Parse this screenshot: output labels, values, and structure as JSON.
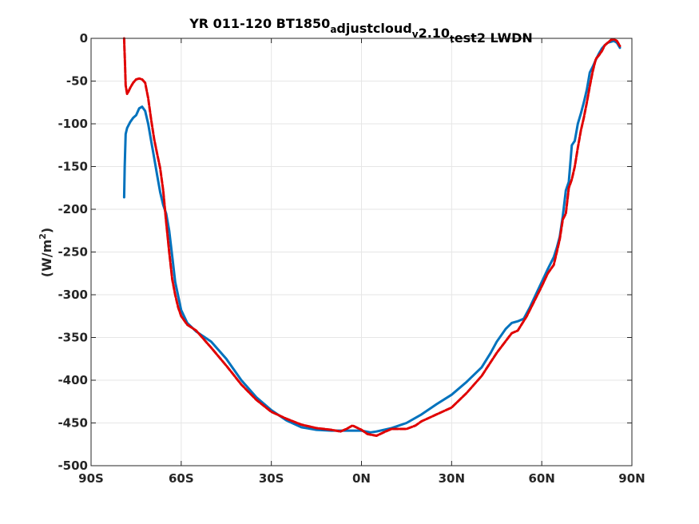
{
  "chart_data": {
    "type": "line",
    "title": {
      "parts": [
        {
          "text": "YR 011-120 BT1850",
          "sub": false
        },
        {
          "text": "a",
          "sub": true
        },
        {
          "text": "djustcloud",
          "sub": false
        },
        {
          "text": "v",
          "sub": true
        },
        {
          "text": "2.10",
          "sub": false
        },
        {
          "text": "t",
          "sub": true
        },
        {
          "text": "est2 LWDN",
          "sub": false
        }
      ]
    },
    "ylabel": {
      "base": "(W/m",
      "sup": "2",
      "close": ")"
    },
    "xlim": [
      -90,
      90
    ],
    "ylim": [
      -500,
      0
    ],
    "xticks": [
      -90,
      -60,
      -30,
      0,
      30,
      60,
      90
    ],
    "xtick_labels": [
      "90S",
      "60S",
      "30S",
      "0N",
      "30N",
      "60N",
      "90N"
    ],
    "yticks": [
      0,
      -50,
      -100,
      -150,
      -200,
      -250,
      -300,
      -350,
      -400,
      -450,
      -500
    ],
    "ytick_labels": [
      "0",
      "-50",
      "-100",
      "-150",
      "-200",
      "-250",
      "-300",
      "-350",
      "-400",
      "-450",
      "-500"
    ],
    "grid": true,
    "series": [
      {
        "color": "#0072BD",
        "style": "solid",
        "x": [
          -79,
          -78.8,
          -78.5,
          -78,
          -77,
          -76,
          -75,
          -74.5,
          -74,
          -73,
          -72,
          -71,
          -70,
          -69,
          -68,
          -67,
          -66,
          -65,
          -64,
          -63,
          -62,
          -60,
          -58,
          -55,
          -50,
          -45,
          -40,
          -35,
          -30,
          -25,
          -20,
          -15,
          -10,
          -5,
          0,
          3,
          5,
          10,
          15,
          20,
          25,
          30,
          35,
          40,
          43,
          45,
          48,
          50,
          52,
          54,
          56,
          58,
          60,
          62,
          64,
          65,
          66,
          67,
          68,
          69,
          70,
          71,
          72,
          73,
          74,
          75,
          76,
          77,
          78,
          79,
          80,
          81,
          82,
          83,
          84,
          85,
          86
        ],
        "y": [
          -186,
          -150,
          -112,
          -105,
          -98,
          -93,
          -90,
          -86,
          -82,
          -80,
          -85,
          -100,
          -120,
          -140,
          -160,
          -180,
          -195,
          -205,
          -225,
          -255,
          -285,
          -318,
          -333,
          -343,
          -355,
          -375,
          -400,
          -420,
          -435,
          -447,
          -455,
          -458,
          -459,
          -459,
          -459,
          -461,
          -460,
          -456,
          -450,
          -440,
          -428,
          -417,
          -402,
          -385,
          -368,
          -355,
          -340,
          -333,
          -331,
          -328,
          -315,
          -300,
          -285,
          -270,
          -256,
          -245,
          -232,
          -208,
          -178,
          -168,
          -125,
          -120,
          -100,
          -88,
          -75,
          -60,
          -40,
          -33,
          -25,
          -18,
          -12,
          -8,
          -5,
          -4,
          -3,
          -5,
          -11
        ]
      },
      {
        "color": "#E00000",
        "style": "dashed",
        "x": [
          -79,
          -78.9,
          -78.7,
          -78.5,
          -78,
          -77.5,
          -77,
          -76,
          -75,
          -74,
          -73,
          -72,
          -71,
          -70,
          -69,
          -68,
          -67,
          -66,
          -65,
          -64,
          -63,
          -62,
          -61,
          -60,
          -58,
          -55,
          -50,
          -45,
          -40,
          -35,
          -30,
          -25,
          -20,
          -15,
          -10,
          -7,
          -5,
          -3,
          0,
          2,
          5,
          8,
          10,
          12,
          15,
          18,
          20,
          25,
          30,
          35,
          40,
          45,
          50,
          52,
          55,
          60,
          62,
          64,
          65,
          66,
          67,
          68,
          69,
          70,
          71,
          72,
          73,
          74,
          75,
          76,
          77,
          78,
          79,
          80,
          81,
          82,
          83,
          84,
          85,
          86
        ],
        "y": [
          0,
          -10,
          -30,
          -55,
          -65,
          -62,
          -58,
          -52,
          -48,
          -47,
          -48,
          -52,
          -70,
          -95,
          -118,
          -135,
          -152,
          -178,
          -215,
          -250,
          -282,
          -300,
          -315,
          -325,
          -335,
          -342,
          -362,
          -383,
          -405,
          -423,
          -437,
          -445,
          -452,
          -456,
          -458,
          -460,
          -457,
          -453,
          -458,
          -463,
          -465,
          -460,
          -457,
          -457,
          -457,
          -453,
          -448,
          -440,
          -432,
          -415,
          -395,
          -368,
          -345,
          -342,
          -325,
          -290,
          -275,
          -265,
          -250,
          -235,
          -212,
          -205,
          -175,
          -165,
          -150,
          -128,
          -108,
          -93,
          -75,
          -56,
          -38,
          -24,
          -20,
          -15,
          -8,
          -5,
          -2,
          -1,
          -3,
          -9
        ]
      }
    ]
  }
}
